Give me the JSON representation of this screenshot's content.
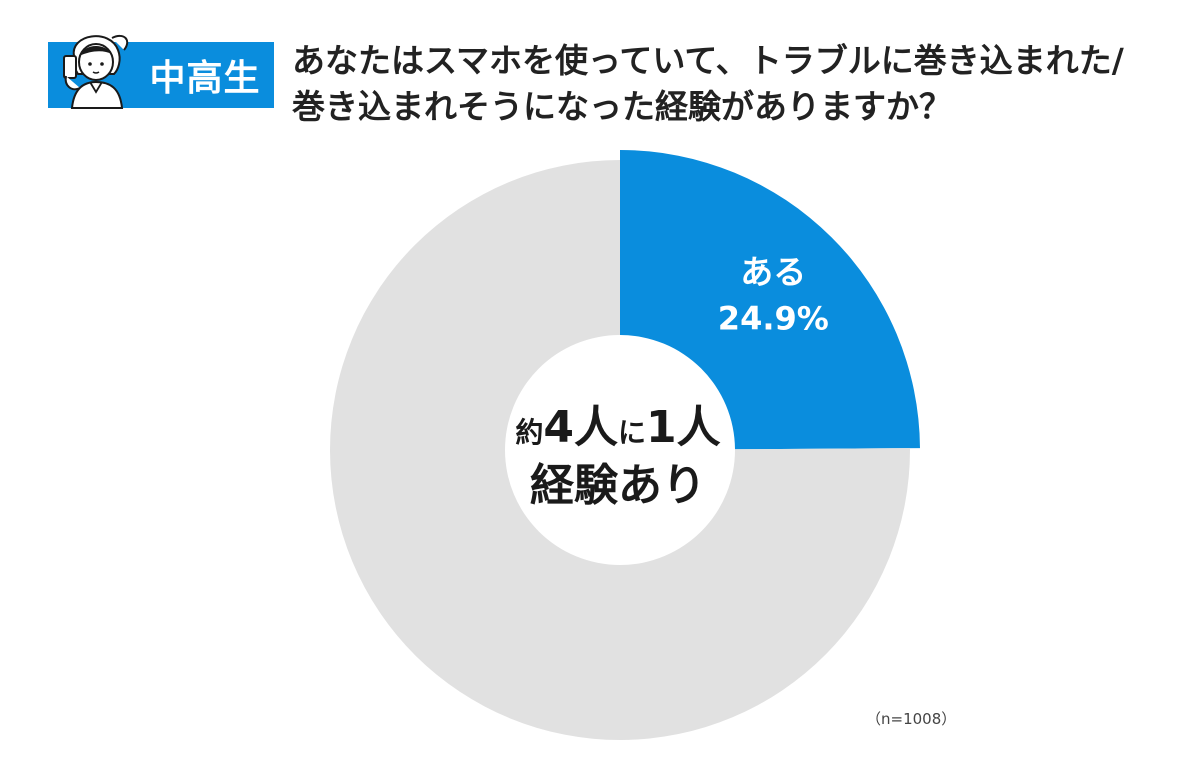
{
  "badge": {
    "label": "中高生"
  },
  "question": {
    "line1": "あなたはスマホを使っていて、トラブルに巻き込まれた/",
    "line2": "巻き込まれそうになった経験がありますか？"
  },
  "chart_data": {
    "type": "pie",
    "style": "donut",
    "slices": [
      {
        "label": "ある",
        "value": 24.9,
        "display": "24.9%",
        "color": "#0a8ddd"
      },
      {
        "label": "",
        "value": 75.1,
        "color": "#e1e1e1"
      }
    ],
    "center_text": {
      "line1_prefix": "約",
      "line1_num1": "4",
      "line1_mid1": "人",
      "line1_mid2": "に",
      "line1_num2": "1",
      "line1_end": "人",
      "line2": "経験あり"
    }
  },
  "footnote": {
    "sample_size": "（n=1008）"
  },
  "colors": {
    "accent": "#0a8ddd",
    "remainder": "#e1e1e1"
  }
}
